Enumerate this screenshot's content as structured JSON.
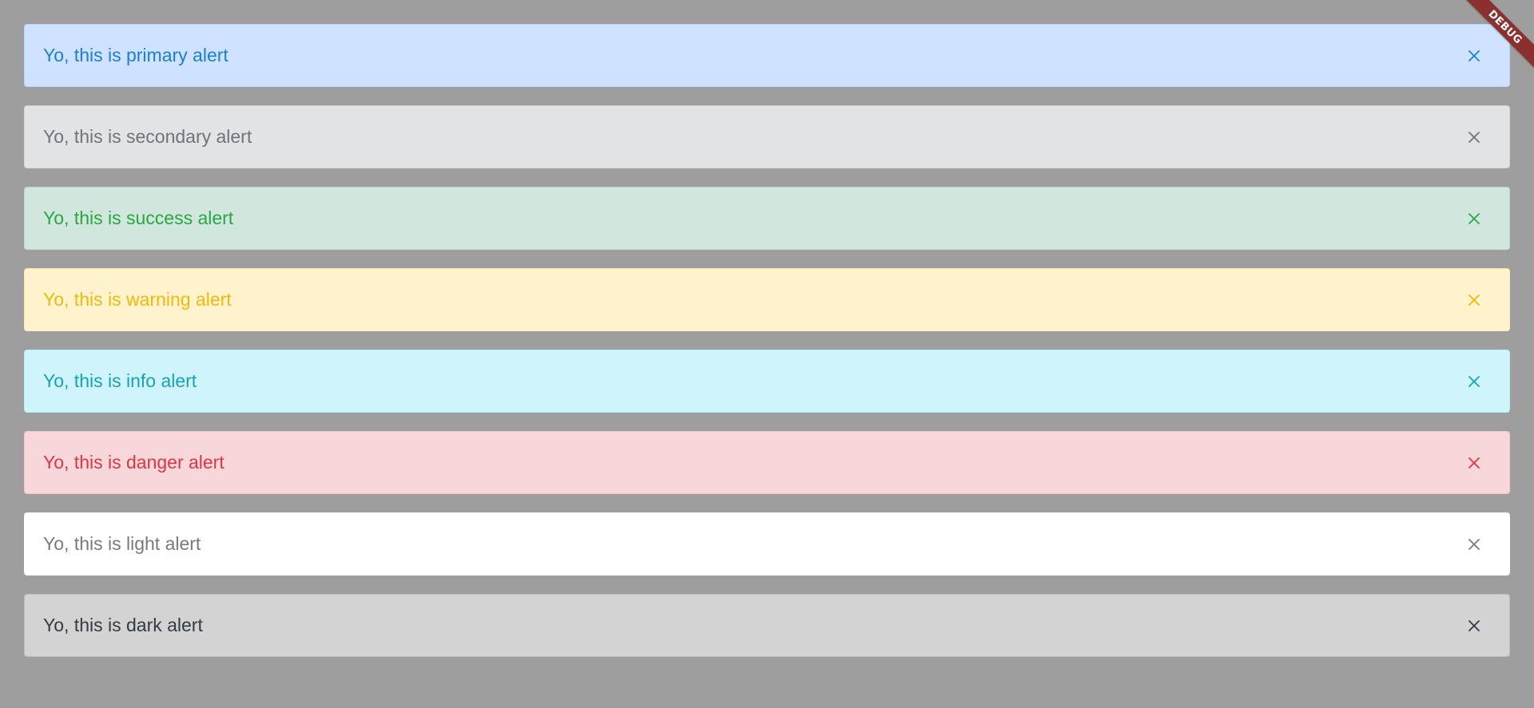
{
  "debug_banner": {
    "label": "DEBUG",
    "color": "#8b2f2f"
  },
  "alerts": [
    {
      "variant": "primary",
      "text": "Yo, this is primary alert",
      "bg": "#cfe2ff",
      "border": "#b6d4fe",
      "fg": "#1c7fd6",
      "icon": "close-icon"
    },
    {
      "variant": "secondary",
      "text": "Yo, this is secondary alert",
      "bg": "#e2e3e5",
      "border": "#d3d6d8",
      "fg": "#6c757d",
      "icon": "close-icon"
    },
    {
      "variant": "success",
      "text": "Yo, this is success alert",
      "bg": "#d1e7dd",
      "border": "#badbcc",
      "fg": "#28a745",
      "icon": "close-icon"
    },
    {
      "variant": "warning",
      "text": "Yo, this is warning alert",
      "bg": "#fff3cd",
      "border": "#ffecb5",
      "fg": "#f0b90b",
      "icon": "close-icon"
    },
    {
      "variant": "info",
      "text": "Yo, this is info alert",
      "bg": "#cff4fc",
      "border": "#b6effb",
      "fg": "#17a2b8",
      "icon": "close-icon"
    },
    {
      "variant": "danger",
      "text": "Yo, this is danger alert",
      "bg": "#f8d7da",
      "border": "#f5c2c7",
      "fg": "#dc3545",
      "icon": "close-icon"
    },
    {
      "variant": "light",
      "text": "Yo, this is light alert",
      "bg": "#ffffff",
      "border": "#fdfdfe",
      "fg": "#7a7a7a",
      "icon": "close-icon"
    },
    {
      "variant": "dark",
      "text": "Yo, this is dark alert",
      "bg": "#d3d3d4",
      "border": "#bcbebf",
      "fg": "#343a40",
      "icon": "close-icon"
    }
  ]
}
